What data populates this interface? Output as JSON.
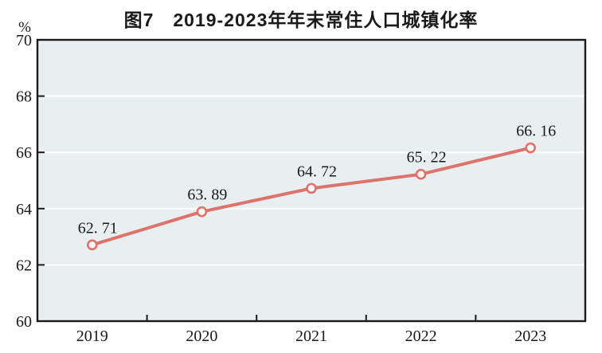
{
  "page": {
    "background": "#ffffff"
  },
  "chart_data": {
    "type": "line",
    "title": "图7　2019-2023年年末常住人口城镇化率",
    "ylabel": "%",
    "xlabel": "",
    "categories": [
      "2019",
      "2020",
      "2021",
      "2022",
      "2023"
    ],
    "values": [
      62.71,
      63.89,
      64.72,
      65.22,
      66.16
    ],
    "point_labels": [
      "62. 71",
      "63. 89",
      "64. 72",
      "65. 22",
      "66. 16"
    ],
    "ylim": [
      60,
      70
    ],
    "yticks": [
      60,
      62,
      64,
      66,
      68,
      70
    ],
    "grid": true,
    "legend_position": "none",
    "colors": {
      "line": "#dc736c",
      "marker_fill": "#fef9f4",
      "plot_bg": "#e9eef0",
      "grid": "#ffffff",
      "axis": "#1a1a1a",
      "text": "#1a1a1a"
    }
  }
}
